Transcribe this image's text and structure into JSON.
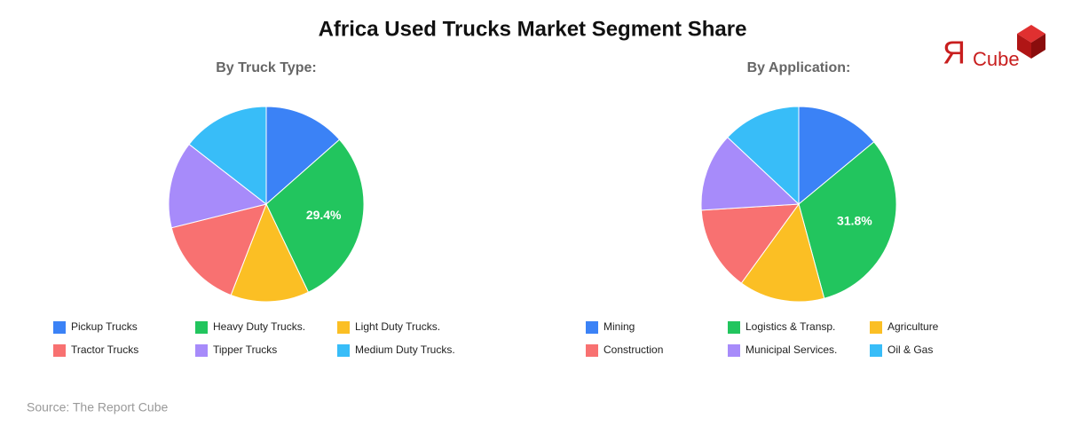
{
  "title": "Africa Used Trucks Market Segment Share",
  "logo": {
    "mark": "Я",
    "text": "Cube"
  },
  "source": "Source: The Report Cube",
  "chart_data": [
    {
      "type": "pie",
      "title": "By Truck Type:",
      "categories": [
        "Pickup Trucks",
        "Heavy Duty Trucks.",
        "Light Duty Trucks.",
        "Tractor Trucks",
        "Tipper Trucks",
        "Medium Duty Trucks."
      ],
      "values": [
        13.5,
        29.4,
        13,
        15.2,
        14.4,
        14.5
      ],
      "value_labels": [
        null,
        "29.4%",
        null,
        null,
        null,
        null
      ],
      "colors": [
        "#3b82f6",
        "#22c55e",
        "#fbbf24",
        "#f87171",
        "#a78bfa",
        "#38bdf8"
      ]
    },
    {
      "type": "pie",
      "title": "By Application:",
      "categories": [
        "Mining",
        "Logistics & Transp.",
        "Agriculture",
        "Construction",
        "Municipal Services.",
        "Oil & Gas"
      ],
      "values": [
        14,
        31.8,
        14.2,
        14,
        13,
        13
      ],
      "value_labels": [
        null,
        "31.8%",
        null,
        null,
        null,
        null
      ],
      "colors": [
        "#3b82f6",
        "#22c55e",
        "#fbbf24",
        "#f87171",
        "#a78bfa",
        "#38bdf8"
      ]
    }
  ]
}
